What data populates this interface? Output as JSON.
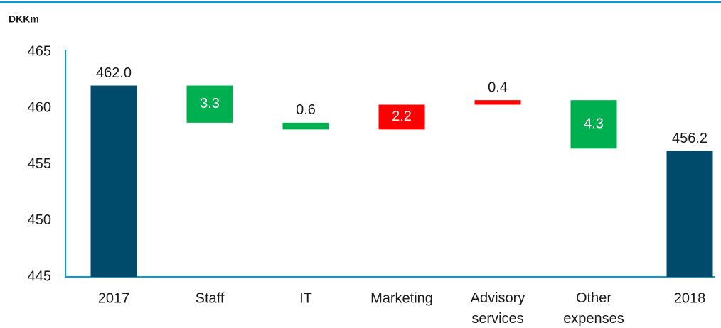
{
  "chart_data": {
    "type": "waterfall",
    "unit_label": "DKKm",
    "categories": [
      "2017",
      "Staff",
      "IT",
      "Marketing",
      "Advisory services",
      "Other expenses",
      "2018"
    ],
    "values": [
      462.0,
      3.3,
      0.6,
      2.2,
      0.4,
      4.3,
      456.2
    ],
    "value_labels": [
      "462.0",
      "3.3",
      "0.6",
      "2.2",
      "0.4",
      "4.3",
      "456.2"
    ],
    "kinds": [
      "total",
      "decrease",
      "decrease",
      "increase",
      "increase",
      "decrease",
      "total"
    ],
    "colors": {
      "total": "#004b6b",
      "decrease": "#00b050",
      "increase": "#ff0000"
    },
    "ylim": [
      445,
      465
    ],
    "yticks": [
      445,
      450,
      455,
      460,
      465
    ],
    "grid": false
  }
}
